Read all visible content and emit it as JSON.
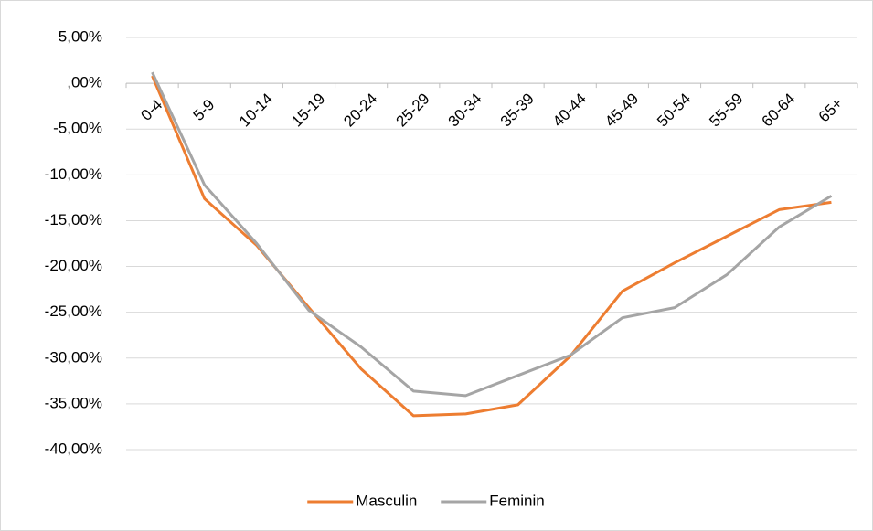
{
  "chart_data": {
    "type": "line",
    "categories": [
      "0-4",
      "5-9",
      "10-14",
      "15-19",
      "20-24",
      "25-29",
      "30-34",
      "35-39",
      "40-44",
      "45-49",
      "50-54",
      "55-59",
      "60-64",
      "65+"
    ],
    "series": [
      {
        "name": "Masculin",
        "color": "#ed7d31",
        "values": [
          0.8,
          -12.6,
          -17.7,
          -24.5,
          -31.2,
          -36.3,
          -36.1,
          -35.1,
          -29.8,
          -22.7,
          -19.6,
          -16.7,
          -13.8,
          -13.0
        ]
      },
      {
        "name": "Feminin",
        "color": "#a5a5a5",
        "values": [
          1.2,
          -11.1,
          -17.5,
          -24.8,
          -28.8,
          -33.6,
          -34.1,
          -31.9,
          -29.7,
          -25.6,
          -24.5,
          -20.9,
          -15.7,
          -12.3
        ]
      }
    ],
    "ylim": [
      -40,
      5
    ],
    "yticks": [
      {
        "value": 5,
        "label": "5,00%"
      },
      {
        "value": 0,
        "label": ",00%"
      },
      {
        "value": -5,
        "label": "-5,00%"
      },
      {
        "value": -10,
        "label": "-10,00%"
      },
      {
        "value": -15,
        "label": "-15,00%"
      },
      {
        "value": -20,
        "label": "-20,00%"
      },
      {
        "value": -25,
        "label": "-25,00%"
      },
      {
        "value": -30,
        "label": "-30,00%"
      },
      {
        "value": -35,
        "label": "-35,00%"
      },
      {
        "value": -40,
        "label": "-40,00%"
      }
    ],
    "grid": true,
    "legend": "bottom"
  }
}
